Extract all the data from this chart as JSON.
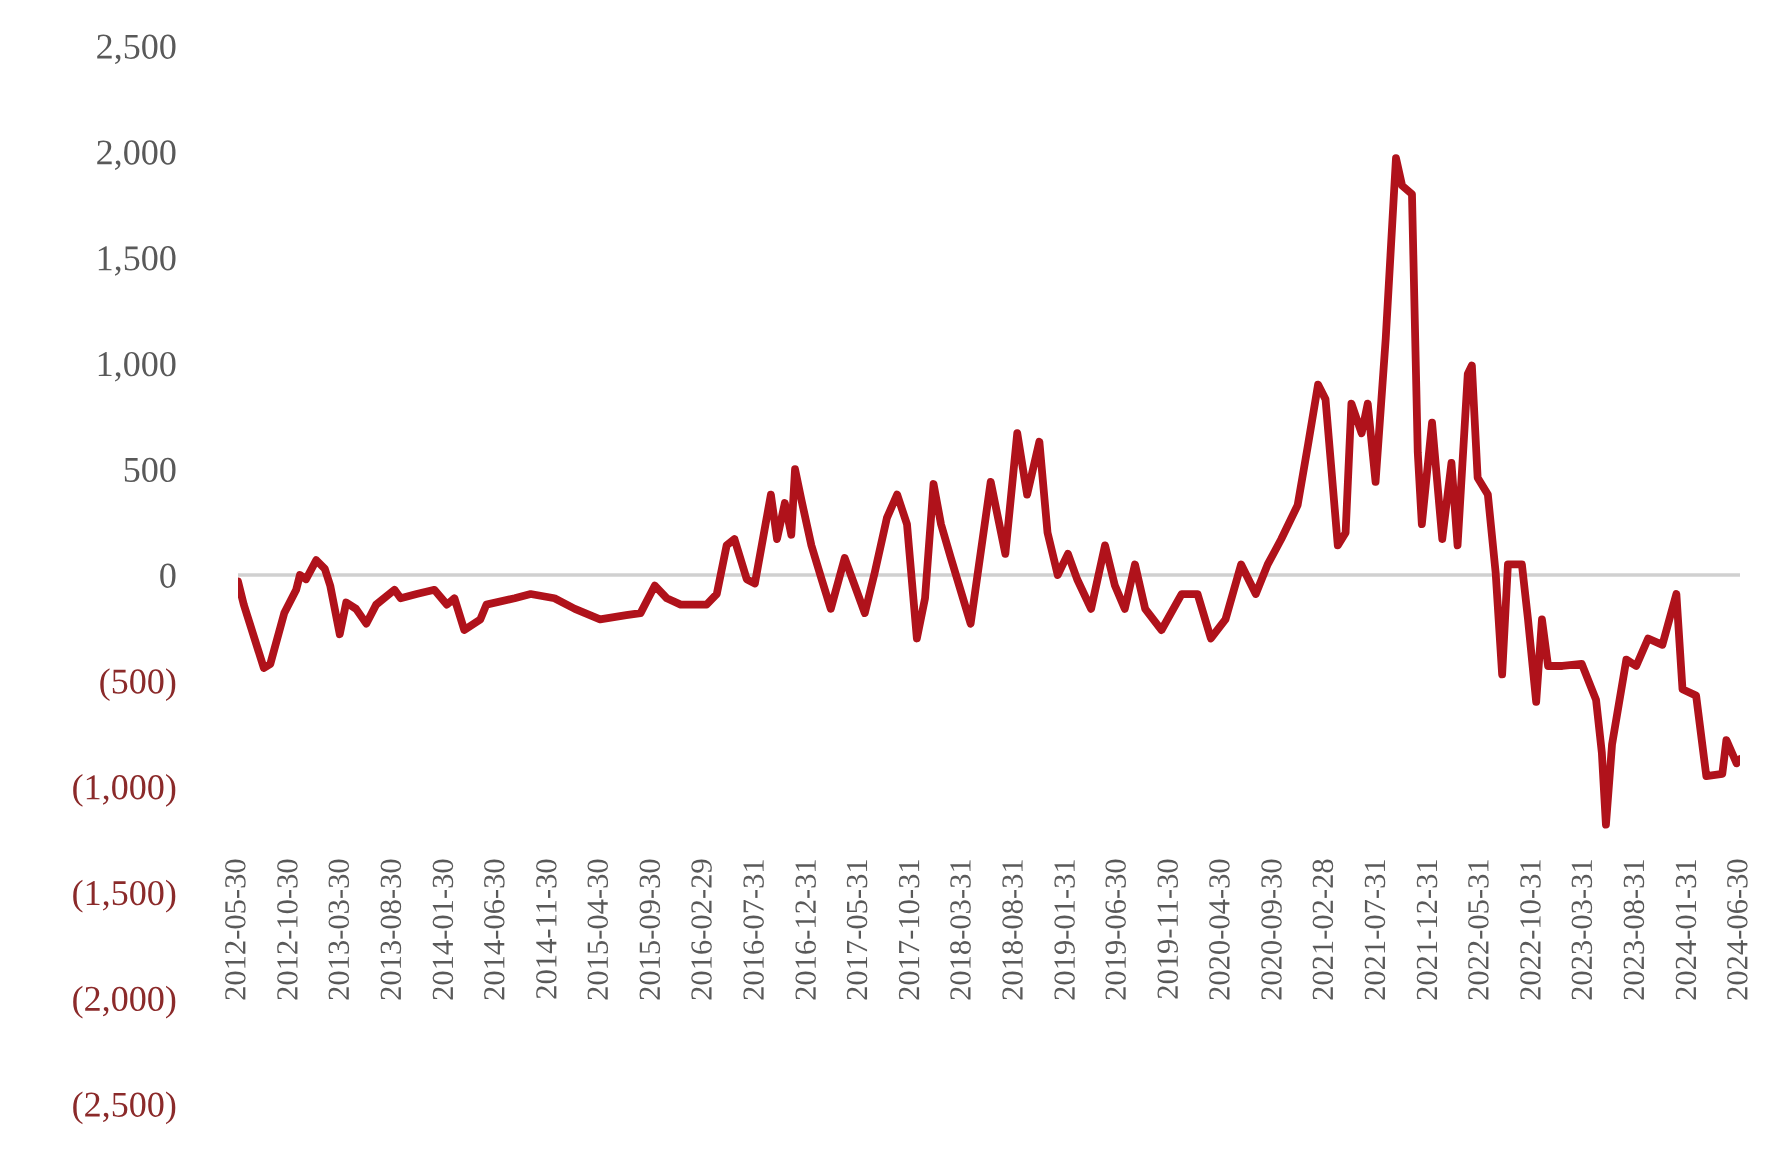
{
  "chart_data": {
    "type": "line",
    "x": [
      "2012-05-30",
      "2012-06-16",
      "2012-08-14",
      "2012-09-02",
      "2012-10-13",
      "2012-11-17",
      "2012-11-28",
      "2012-12-16",
      "2013-01-15",
      "2013-02-09",
      "2013-02-25",
      "2013-03-25",
      "2013-04-13",
      "2013-05-12",
      "2013-06-11",
      "2013-07-10",
      "2013-09-02",
      "2013-09-20",
      "2013-11-06",
      "2013-12-28",
      "2014-02-03",
      "2014-02-25",
      "2014-03-26",
      "2014-05-12",
      "2014-05-30",
      "2014-08-21",
      "2014-10-07",
      "2014-12-16",
      "2015-02-14",
      "2015-04-29",
      "2015-07-15",
      "2015-08-26",
      "2015-10-07",
      "2015-11-11",
      "2015-12-22",
      "2016-03-07",
      "2016-04-06",
      "2016-05-05",
      "2016-05-28",
      "2016-07-03",
      "2016-07-27",
      "2016-09-12",
      "2016-09-30",
      "2016-10-23",
      "2016-11-11",
      "2016-11-22",
      "2016-12-10",
      "2017-01-09",
      "2017-02-08",
      "2017-03-07",
      "2017-04-17",
      "2017-06-15",
      "2017-07-14",
      "2017-08-19",
      "2017-09-18",
      "2017-10-17",
      "2017-11-15",
      "2017-12-09",
      "2018-01-03",
      "2018-01-25",
      "2018-02-23",
      "2018-04-22",
      "2018-06-20",
      "2018-08-02",
      "2018-09-06",
      "2018-10-05",
      "2018-11-10",
      "2018-12-04",
      "2019-01-03",
      "2019-02-02",
      "2019-03-01",
      "2019-04-11",
      "2019-05-22",
      "2019-06-20",
      "2019-07-19",
      "2019-08-18",
      "2019-09-17",
      "2019-11-04",
      "2020-01-02",
      "2020-02-18",
      "2020-03-28",
      "2020-05-10",
      "2020-06-25",
      "2020-08-07",
      "2020-09-11",
      "2020-10-21",
      "2020-12-08",
      "2021-01-08",
      "2021-02-06",
      "2021-02-28",
      "2021-04-05",
      "2021-04-28",
      "2021-05-15",
      "2021-06-14",
      "2021-07-02",
      "2021-07-25",
      "2021-08-24",
      "2021-09-23",
      "2021-10-11",
      "2021-11-09",
      "2021-11-26",
      "2021-12-08",
      "2022-01-07",
      "2022-02-06",
      "2022-03-05",
      "2022-03-23",
      "2022-04-22",
      "2022-05-04",
      "2022-05-21",
      "2022-06-20",
      "2022-07-13",
      "2022-08-01",
      "2022-08-18",
      "2022-09-28",
      "2022-10-16",
      "2022-11-09",
      "2022-11-26",
      "2022-12-14",
      "2023-01-25",
      "2023-03-23",
      "2023-05-04",
      "2023-05-21",
      "2023-06-02",
      "2023-06-20",
      "2023-08-01",
      "2023-08-30",
      "2023-10-04",
      "2023-11-15",
      "2023-12-26",
      "2024-01-13",
      "2024-02-22",
      "2024-03-23",
      "2024-05-09",
      "2024-05-21",
      "2024-06-20",
      "2024-06-30"
    ],
    "series": [
      {
        "color": "#b0121b",
        "values": [
          -30,
          -140,
          -440,
          -420,
          -180,
          -70,
          0,
          -20,
          70,
          30,
          -50,
          -280,
          -130,
          -160,
          -230,
          -140,
          -70,
          -110,
          -90,
          -70,
          -140,
          -110,
          -260,
          -210,
          -140,
          -110,
          -90,
          -110,
          -160,
          -210,
          -190,
          -180,
          -50,
          -110,
          -140,
          -140,
          -90,
          140,
          170,
          -20,
          -40,
          380,
          170,
          340,
          190,
          500,
          360,
          140,
          -20,
          -160,
          80,
          -180,
          10,
          270,
          380,
          240,
          -300,
          -110,
          430,
          240,
          80,
          -230,
          440,
          100,
          670,
          380,
          630,
          200,
          0,
          100,
          -20,
          -160,
          140,
          -50,
          -160,
          50,
          -160,
          -260,
          -90,
          -90,
          -300,
          -210,
          50,
          -90,
          50,
          170,
          330,
          620,
          900,
          830,
          140,
          200,
          810,
          670,
          810,
          440,
          1120,
          1970,
          1840,
          1800,
          580,
          240,
          720,
          170,
          530,
          140,
          950,
          990,
          460,
          380,
          10,
          -470,
          50,
          50,
          -210,
          -600,
          -210,
          -430,
          -430,
          -420,
          -590,
          -840,
          -1180,
          -800,
          -400,
          -430,
          -300,
          -330,
          -90,
          -540,
          -570,
          -950,
          -940,
          -780,
          -890,
          -870
        ]
      }
    ],
    "xlim": [
      "2012-05-30",
      "2024-06-30"
    ],
    "xticks": [
      "2012-05-30",
      "2012-10-30",
      "2013-03-30",
      "2013-08-30",
      "2014-01-30",
      "2014-06-30",
      "2014-11-30",
      "2015-04-30",
      "2015-09-30",
      "2016-02-29",
      "2016-07-31",
      "2016-12-31",
      "2017-05-31",
      "2017-10-31",
      "2018-03-31",
      "2018-08-31",
      "2019-01-31",
      "2019-06-30",
      "2019-11-30",
      "2020-04-30",
      "2020-09-30",
      "2021-02-28",
      "2021-07-31",
      "2021-12-31",
      "2022-05-31",
      "2022-10-31",
      "2023-03-31",
      "2023-08-31",
      "2024-01-31",
      "2024-06-30"
    ],
    "ylim": [
      -2500,
      2500
    ],
    "yticks": [
      {
        "value": 2500,
        "label": "2,500"
      },
      {
        "value": 2000,
        "label": "2,000"
      },
      {
        "value": 1500,
        "label": "1,500"
      },
      {
        "value": 1000,
        "label": "1,000"
      },
      {
        "value": 500,
        "label": "500"
      },
      {
        "value": 0,
        "label": "0"
      },
      {
        "value": -500,
        "label": "(500)"
      },
      {
        "value": -1000,
        "label": "(1,000)"
      },
      {
        "value": -1500,
        "label": "(1,500)"
      },
      {
        "value": -2000,
        "label": "(2,000)"
      },
      {
        "value": -2500,
        "label": "(2,500)"
      }
    ],
    "ref_lines": [
      {
        "axis": "y",
        "value": 0,
        "color": "#d0d0d0",
        "line_style": "solid"
      }
    ],
    "grid": false,
    "legend": false,
    "marker": "none",
    "line_style": "solid"
  }
}
